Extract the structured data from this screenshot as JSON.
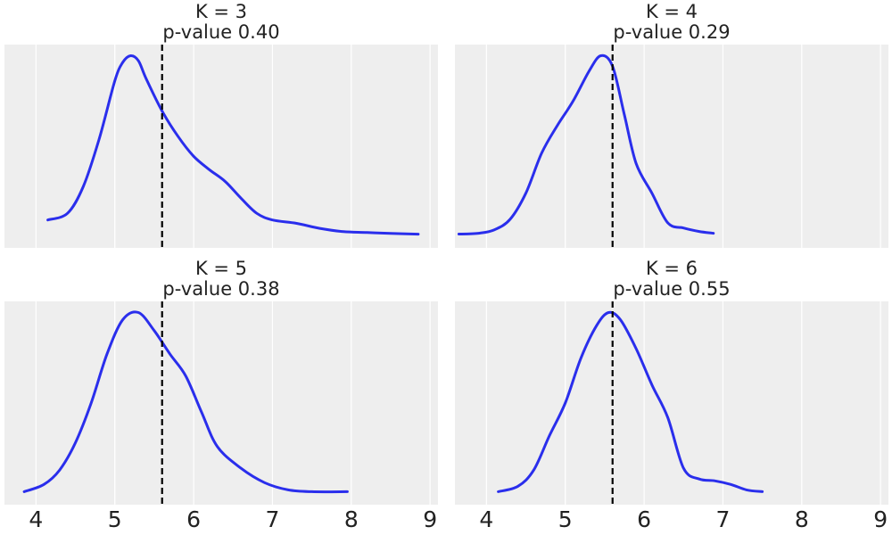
{
  "chart_data": [
    {
      "type": "line",
      "title": "K = 3",
      "subtitle": "p-value 0.40",
      "observed_x": 5.6,
      "xlim": [
        3.6,
        9.1
      ],
      "x": [
        4.15,
        4.4,
        4.6,
        4.8,
        5.0,
        5.1,
        5.2,
        5.3,
        5.4,
        5.6,
        5.8,
        6.0,
        6.2,
        6.4,
        6.6,
        6.8,
        7.0,
        7.3,
        7.6,
        7.9,
        8.2,
        8.5,
        8.85
      ],
      "y": [
        0.1,
        0.14,
        0.3,
        0.58,
        0.93,
        1.04,
        1.08,
        1.05,
        0.94,
        0.75,
        0.6,
        0.48,
        0.4,
        0.33,
        0.23,
        0.14,
        0.1,
        0.08,
        0.05,
        0.03,
        0.025,
        0.02,
        0.015
      ]
    },
    {
      "type": "line",
      "title": "K = 4",
      "subtitle": "p-value 0.29",
      "observed_x": 5.6,
      "xlim": [
        3.6,
        9.1
      ],
      "x": [
        3.65,
        3.9,
        4.1,
        4.3,
        4.5,
        4.7,
        4.9,
        5.1,
        5.3,
        5.45,
        5.6,
        5.75,
        5.9,
        6.1,
        6.3,
        6.5,
        6.7,
        6.88
      ],
      "y": [
        0.015,
        0.02,
        0.04,
        0.1,
        0.25,
        0.48,
        0.64,
        0.78,
        0.95,
        1.04,
        0.98,
        0.7,
        0.42,
        0.25,
        0.08,
        0.05,
        0.03,
        0.02
      ]
    },
    {
      "type": "line",
      "title": "K = 5",
      "subtitle": "p-value 0.38",
      "observed_x": 5.6,
      "xlim": [
        3.6,
        9.1
      ],
      "x": [
        3.85,
        4.1,
        4.3,
        4.5,
        4.7,
        4.9,
        5.1,
        5.3,
        5.5,
        5.7,
        5.9,
        6.1,
        6.3,
        6.6,
        6.9,
        7.2,
        7.5,
        7.95
      ],
      "y": [
        0.01,
        0.05,
        0.13,
        0.28,
        0.5,
        0.77,
        0.96,
        1.0,
        0.9,
        0.77,
        0.65,
        0.45,
        0.26,
        0.14,
        0.06,
        0.02,
        0.01,
        0.01
      ]
    },
    {
      "type": "line",
      "title": "K = 6",
      "subtitle": "p-value 0.55",
      "observed_x": 5.6,
      "xlim": [
        3.6,
        9.1
      ],
      "x": [
        4.15,
        4.4,
        4.6,
        4.8,
        5.0,
        5.2,
        5.4,
        5.55,
        5.7,
        5.9,
        6.1,
        6.3,
        6.5,
        6.7,
        6.9,
        7.1,
        7.3,
        7.5
      ],
      "y": [
        0.01,
        0.04,
        0.13,
        0.32,
        0.5,
        0.75,
        0.93,
        1.0,
        0.96,
        0.8,
        0.6,
        0.42,
        0.14,
        0.08,
        0.07,
        0.05,
        0.02,
        0.01
      ]
    }
  ],
  "x_ticks": [
    "4",
    "5",
    "6",
    "7",
    "8",
    "9"
  ],
  "colors": {
    "kde": "#2a2eec",
    "observed": "#000000",
    "panel_bg": "#eeeeee",
    "grid": "#ffffff"
  }
}
